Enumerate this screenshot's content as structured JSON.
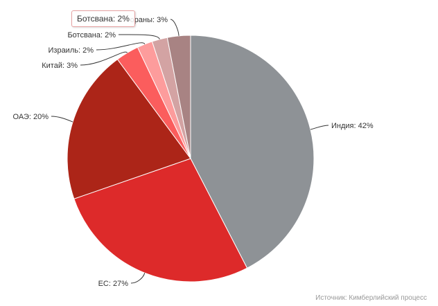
{
  "chart_data": {
    "type": "pie",
    "slices": [
      {
        "label": "Индия",
        "value": 42,
        "display": "Индия: 42%",
        "color": "#8e9296"
      },
      {
        "label": "ЕС",
        "value": 27,
        "display": "ЕС: 27%",
        "color": "#dd2a2a"
      },
      {
        "label": "ОАЭ",
        "value": 20,
        "display": "ОАЭ: 20%",
        "color": "#ac2518"
      },
      {
        "label": "Китай",
        "value": 3,
        "display": "Китай: 3%",
        "color": "#fb5d5d"
      },
      {
        "label": "Израиль",
        "value": 2,
        "display": "Израиль: 2%",
        "color": "#fd9c9c"
      },
      {
        "label": "Ботсвана",
        "value": 2,
        "display": "Ботсвана: 2%",
        "color": "#d3a3a3"
      },
      {
        "label": "Другие страны",
        "value": 3,
        "display": "ораны: 3%",
        "color": "#a88383"
      }
    ]
  },
  "tooltip": {
    "text": "Ботсвана: 2%"
  },
  "source": "Источник: Кимберлийский процесс"
}
